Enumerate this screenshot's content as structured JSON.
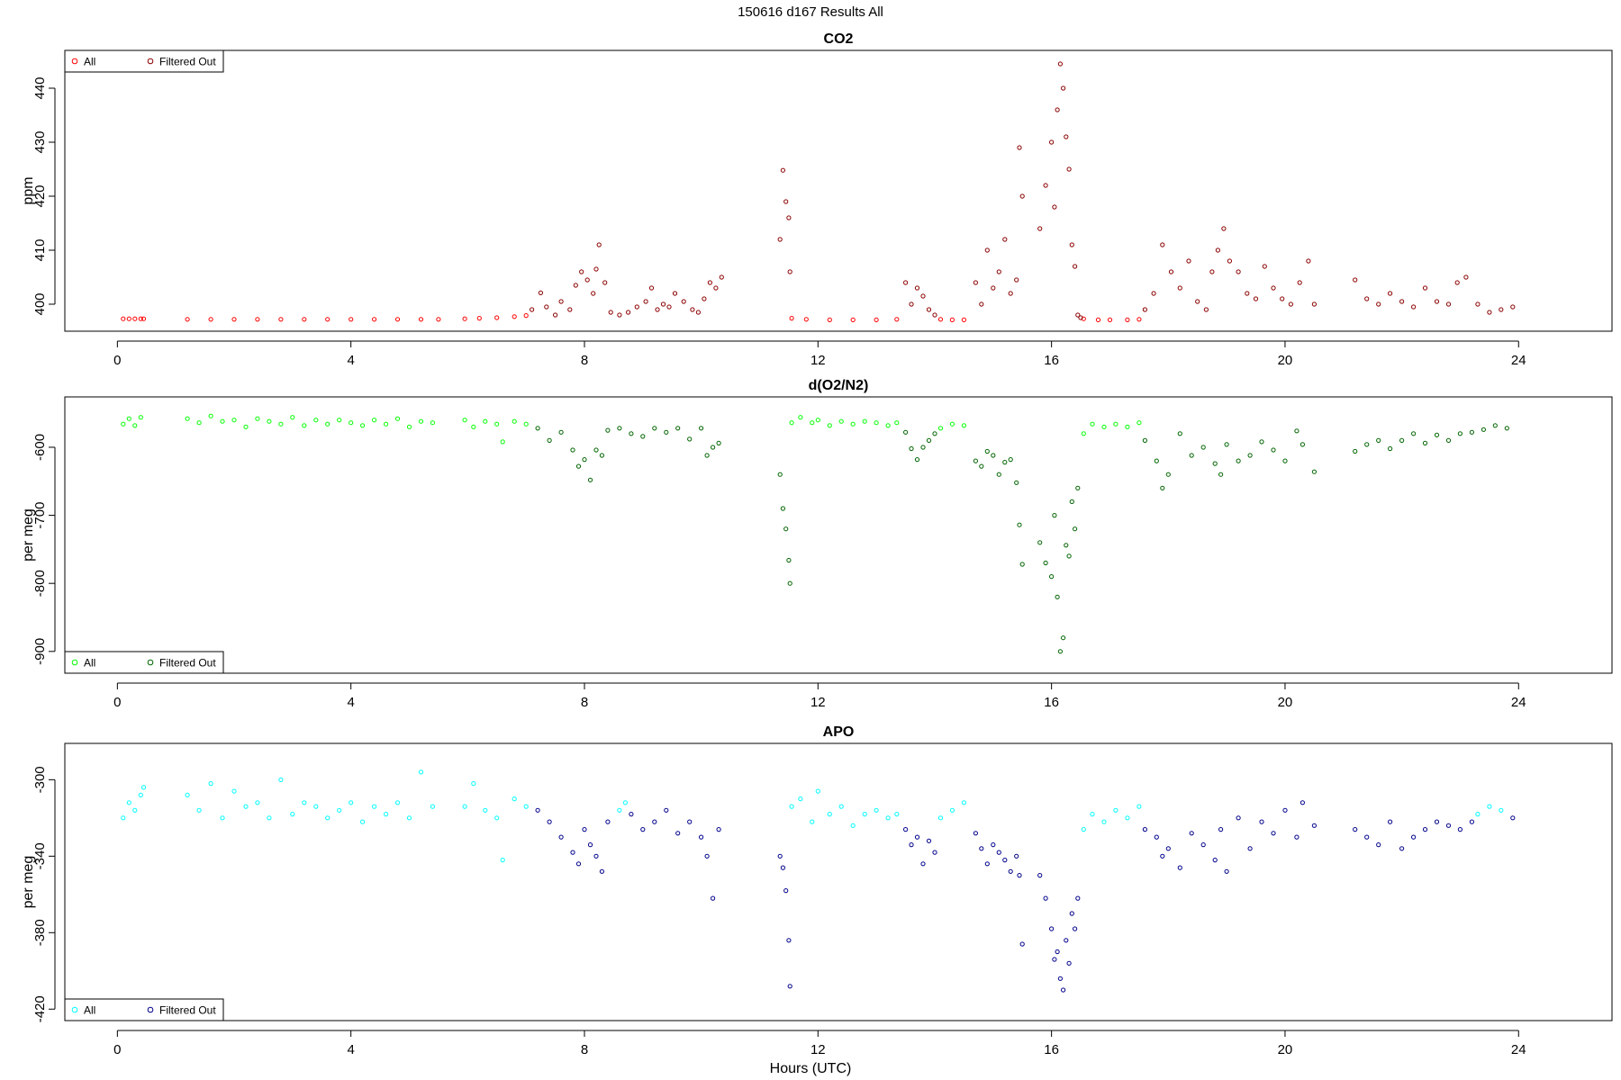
{
  "figure": {
    "title": "150616   d167   Results All",
    "xlabel": "Hours (UTC)"
  },
  "chart_data": [
    {
      "type": "scatter",
      "title": "CO2",
      "ylabel": "ppm",
      "xlim": [
        -0.9,
        25.6
      ],
      "ylim": [
        395,
        447
      ],
      "xticks": [
        0,
        4,
        8,
        12,
        16,
        20,
        24
      ],
      "yticks": [
        400,
        410,
        420,
        430,
        440
      ],
      "legend": {
        "position": "top-left",
        "entries": [
          "All",
          "Filtered Out"
        ]
      },
      "colors": {
        "all": "#ff0000",
        "filtered": "#8b0000"
      },
      "series": [
        {
          "name": "All",
          "x": [
            0.1,
            0.2,
            0.3,
            0.4,
            0.45,
            1.2,
            1.6,
            2.0,
            2.4,
            2.8,
            3.2,
            3.6,
            4.0,
            4.4,
            4.8,
            5.2,
            5.5,
            5.95,
            6.2,
            6.5,
            6.8,
            7.0,
            11.55,
            11.8,
            12.2,
            12.6,
            13.0,
            13.35,
            14.1,
            14.3,
            14.5,
            16.55,
            16.8,
            17.0,
            17.3,
            17.5
          ],
          "y": [
            397.3,
            397.3,
            397.3,
            397.3,
            397.3,
            397.2,
            397.2,
            397.2,
            397.2,
            397.2,
            397.2,
            397.2,
            397.2,
            397.2,
            397.2,
            397.2,
            397.2,
            397.3,
            397.4,
            397.5,
            397.7,
            397.9,
            397.4,
            397.2,
            397.1,
            397.1,
            397.1,
            397.2,
            397.2,
            397.1,
            397.1,
            397.3,
            397.1,
            397.1,
            397.1,
            397.2
          ]
        },
        {
          "name": "Filtered Out",
          "x": [
            7.1,
            7.25,
            7.35,
            7.5,
            7.6,
            7.75,
            7.85,
            7.95,
            8.05,
            8.15,
            8.2,
            8.25,
            8.35,
            8.45,
            8.6,
            8.75,
            8.9,
            9.05,
            9.15,
            9.25,
            9.35,
            9.45,
            9.55,
            9.7,
            9.85,
            9.95,
            10.05,
            10.15,
            10.25,
            10.35,
            11.35,
            11.4,
            11.45,
            11.5,
            11.52,
            13.5,
            13.6,
            13.7,
            13.8,
            13.9,
            14.0,
            14.7,
            14.8,
            14.9,
            15.0,
            15.1,
            15.2,
            15.3,
            15.4,
            15.45,
            15.5,
            15.8,
            15.9,
            16.0,
            16.05,
            16.1,
            16.15,
            16.2,
            16.25,
            16.3,
            16.35,
            16.4,
            16.45,
            16.5,
            17.6,
            17.75,
            17.9,
            18.05,
            18.2,
            18.35,
            18.5,
            18.65,
            18.75,
            18.85,
            18.95,
            19.05,
            19.2,
            19.35,
            19.5,
            19.65,
            19.8,
            19.95,
            20.1,
            20.25,
            20.4,
            20.5,
            21.2,
            21.4,
            21.6,
            21.8,
            22.0,
            22.2,
            22.4,
            22.6,
            22.8,
            22.95,
            23.1,
            23.3,
            23.5,
            23.7,
            23.9
          ],
          "y": [
            399.0,
            402.1,
            399.5,
            398.0,
            400.5,
            399.0,
            403.5,
            406.0,
            404.5,
            402.0,
            406.5,
            411.0,
            404.0,
            398.5,
            398.0,
            398.5,
            399.5,
            400.5,
            403.0,
            399.0,
            400.0,
            399.5,
            402.0,
            400.5,
            399.0,
            398.5,
            401.0,
            404.0,
            403.0,
            405.0,
            412.0,
            424.8,
            419.0,
            416.0,
            406.0,
            404.0,
            400.0,
            403.0,
            401.5,
            399.0,
            398.0,
            404.0,
            400.0,
            410.0,
            403.0,
            406.0,
            412.0,
            402.0,
            404.5,
            429.0,
            420.0,
            414.0,
            422.0,
            430.0,
            418.0,
            436.0,
            444.5,
            440.0,
            431.0,
            425.0,
            411.0,
            407.0,
            398.0,
            397.5,
            399.0,
            402.0,
            411.0,
            406.0,
            403.0,
            408.0,
            400.5,
            399.0,
            406.0,
            410.0,
            414.0,
            408.0,
            406.0,
            402.0,
            401.0,
            407.0,
            403.0,
            401.0,
            400.0,
            404.0,
            408.0,
            400.0,
            404.5,
            401.0,
            400.0,
            402.0,
            400.5,
            399.5,
            403.0,
            400.5,
            400.0,
            404.0,
            405.0,
            400.0,
            398.5,
            399.0,
            399.5
          ]
        }
      ]
    },
    {
      "type": "scatter",
      "title": "d(O2/N2)",
      "ylabel": "per meg",
      "xlim": [
        -0.9,
        25.6
      ],
      "ylim": [
        -932,
        -526
      ],
      "xticks": [
        0,
        4,
        8,
        12,
        16,
        20,
        24
      ],
      "yticks": [
        -600,
        -700,
        -800,
        -900
      ],
      "legend": {
        "position": "bottom-left",
        "entries": [
          "All",
          "Filtered Out"
        ]
      },
      "colors": {
        "all": "#00ff00",
        "filtered": "#006400"
      },
      "series": [
        {
          "name": "All",
          "x": [
            0.1,
            0.2,
            0.3,
            0.4,
            1.2,
            1.4,
            1.6,
            1.8,
            2.0,
            2.2,
            2.4,
            2.6,
            2.8,
            3.0,
            3.2,
            3.4,
            3.6,
            3.8,
            4.0,
            4.2,
            4.4,
            4.6,
            4.8,
            5.0,
            5.2,
            5.4,
            5.95,
            6.1,
            6.3,
            6.5,
            6.6,
            6.8,
            7.0,
            11.55,
            11.7,
            11.9,
            12.0,
            12.2,
            12.4,
            12.6,
            12.8,
            13.0,
            13.2,
            13.35,
            14.1,
            14.3,
            14.5,
            16.55,
            16.7,
            16.9,
            17.1,
            17.3,
            17.5
          ],
          "y": [
            -566,
            -558,
            -568,
            -556,
            -558,
            -564,
            -554,
            -562,
            -560,
            -570,
            -558,
            -562,
            -566,
            -556,
            -568,
            -560,
            -566,
            -560,
            -564,
            -568,
            -560,
            -566,
            -558,
            -570,
            -562,
            -564,
            -560,
            -570,
            -562,
            -566,
            -592,
            -562,
            -566,
            -564,
            -556,
            -564,
            -560,
            -568,
            -562,
            -566,
            -562,
            -564,
            -568,
            -564,
            -572,
            -566,
            -568,
            -580,
            -566,
            -570,
            -566,
            -570,
            -564
          ]
        },
        {
          "name": "Filtered Out",
          "x": [
            7.2,
            7.4,
            7.6,
            7.8,
            7.9,
            8.0,
            8.1,
            8.2,
            8.3,
            8.4,
            8.6,
            8.8,
            9.0,
            9.2,
            9.4,
            9.6,
            9.8,
            10.0,
            10.1,
            10.2,
            10.3,
            11.35,
            11.4,
            11.45,
            11.5,
            11.52,
            13.5,
            13.6,
            13.7,
            13.8,
            13.9,
            14.0,
            14.7,
            14.8,
            14.9,
            15.0,
            15.1,
            15.2,
            15.3,
            15.4,
            15.45,
            15.5,
            15.8,
            15.9,
            16.0,
            16.05,
            16.1,
            16.15,
            16.2,
            16.25,
            16.3,
            16.35,
            16.4,
            16.45,
            17.6,
            17.8,
            17.9,
            18.0,
            18.2,
            18.4,
            18.6,
            18.8,
            18.9,
            19.0,
            19.2,
            19.4,
            19.6,
            19.8,
            20.0,
            20.2,
            20.3,
            20.5,
            21.2,
            21.4,
            21.6,
            21.8,
            22.0,
            22.2,
            22.4,
            22.6,
            22.8,
            23.0,
            23.2,
            23.4,
            23.6,
            23.8
          ],
          "y": [
            -572,
            -590,
            -578,
            -604,
            -628,
            -618,
            -648,
            -604,
            -612,
            -575,
            -572,
            -580,
            -584,
            -572,
            -578,
            -572,
            -588,
            -572,
            -612,
            -600,
            -594,
            -640,
            -690,
            -720,
            -766,
            -800,
            -578,
            -602,
            -618,
            -600,
            -590,
            -580,
            -620,
            -628,
            -606,
            -612,
            -640,
            -622,
            -618,
            -652,
            -714,
            -772,
            -740,
            -770,
            -790,
            -700,
            -820,
            -900,
            -880,
            -744,
            -760,
            -680,
            -720,
            -660,
            -590,
            -620,
            -660,
            -640,
            -580,
            -612,
            -600,
            -624,
            -640,
            -596,
            -620,
            -612,
            -592,
            -604,
            -620,
            -576,
            -596,
            -636,
            -606,
            -596,
            -590,
            -602,
            -590,
            -580,
            -594,
            -582,
            -590,
            -580,
            -578,
            -574,
            -568,
            -572
          ]
        }
      ]
    },
    {
      "type": "scatter",
      "title": "APO",
      "ylabel": "per meg",
      "xlim": [
        -0.9,
        25.6
      ],
      "ylim": [
        -426,
        -281
      ],
      "xticks": [
        0,
        4,
        8,
        12,
        16,
        20,
        24
      ],
      "yticks": [
        -300,
        -340,
        -380,
        -420
      ],
      "legend": {
        "position": "bottom-left",
        "entries": [
          "All",
          "Filtered Out"
        ]
      },
      "colors": {
        "all": "#00ffff",
        "filtered": "#00008b"
      },
      "series": [
        {
          "name": "All",
          "x": [
            0.1,
            0.2,
            0.3,
            0.4,
            0.45,
            1.2,
            1.4,
            1.6,
            1.8,
            2.0,
            2.2,
            2.4,
            2.6,
            2.8,
            3.0,
            3.2,
            3.4,
            3.6,
            3.8,
            4.0,
            4.2,
            4.4,
            4.6,
            4.8,
            5.0,
            5.2,
            5.4,
            5.95,
            6.1,
            6.3,
            6.5,
            6.6,
            6.8,
            7.0,
            8.6,
            8.7,
            11.55,
            11.7,
            11.9,
            12.0,
            12.2,
            12.4,
            12.6,
            12.8,
            13.0,
            13.2,
            13.35,
            14.1,
            14.3,
            14.5,
            16.55,
            16.7,
            16.9,
            17.1,
            17.3,
            17.5,
            23.3,
            23.5,
            23.7
          ],
          "y": [
            -320,
            -312,
            -316,
            -308,
            -304,
            -308,
            -316,
            -302,
            -320,
            -306,
            -314,
            -312,
            -320,
            -300,
            -318,
            -312,
            -314,
            -320,
            -316,
            -312,
            -322,
            -314,
            -318,
            -312,
            -320,
            -296,
            -314,
            -314,
            -302,
            -316,
            -320,
            -342,
            -310,
            -314,
            -316,
            -312,
            -314,
            -310,
            -322,
            -306,
            -318,
            -314,
            -324,
            -318,
            -316,
            -320,
            -318,
            -320,
            -316,
            -312,
            -326,
            -318,
            -322,
            -316,
            -320,
            -314,
            -318,
            -314,
            -316
          ]
        },
        {
          "name": "Filtered Out",
          "x": [
            7.2,
            7.4,
            7.6,
            7.8,
            7.9,
            8.0,
            8.1,
            8.2,
            8.3,
            8.4,
            8.8,
            9.0,
            9.2,
            9.4,
            9.6,
            9.8,
            10.0,
            10.1,
            10.2,
            10.3,
            11.35,
            11.4,
            11.45,
            11.5,
            11.52,
            13.5,
            13.6,
            13.7,
            13.8,
            13.9,
            14.0,
            14.7,
            14.8,
            14.9,
            15.0,
            15.1,
            15.2,
            15.3,
            15.4,
            15.45,
            15.5,
            15.8,
            15.9,
            16.0,
            16.05,
            16.1,
            16.15,
            16.2,
            16.25,
            16.3,
            16.35,
            16.4,
            16.45,
            17.6,
            17.8,
            17.9,
            18.0,
            18.2,
            18.4,
            18.6,
            18.8,
            18.9,
            19.0,
            19.2,
            19.4,
            19.6,
            19.8,
            20.0,
            20.2,
            20.3,
            20.5,
            21.2,
            21.4,
            21.6,
            21.8,
            22.0,
            22.2,
            22.4,
            22.6,
            22.8,
            23.0,
            23.2,
            23.9
          ],
          "y": [
            -316,
            -322,
            -330,
            -338,
            -344,
            -326,
            -334,
            -340,
            -348,
            -322,
            -318,
            -326,
            -322,
            -316,
            -328,
            -322,
            -330,
            -340,
            -362,
            -326,
            -340,
            -346,
            -358,
            -384,
            -408,
            -326,
            -334,
            -330,
            -344,
            -332,
            -338,
            -328,
            -336,
            -344,
            -334,
            -338,
            -342,
            -348,
            -340,
            -350,
            -386,
            -350,
            -362,
            -378,
            -394,
            -390,
            -404,
            -410,
            -384,
            -396,
            -370,
            -378,
            -362,
            -326,
            -330,
            -340,
            -336,
            -346,
            -328,
            -334,
            -342,
            -326,
            -348,
            -320,
            -336,
            -322,
            -328,
            -316,
            -330,
            -312,
            -324,
            -326,
            -330,
            -334,
            -322,
            -336,
            -330,
            -326,
            -322,
            -324,
            -326,
            -322,
            -320
          ]
        }
      ]
    }
  ]
}
